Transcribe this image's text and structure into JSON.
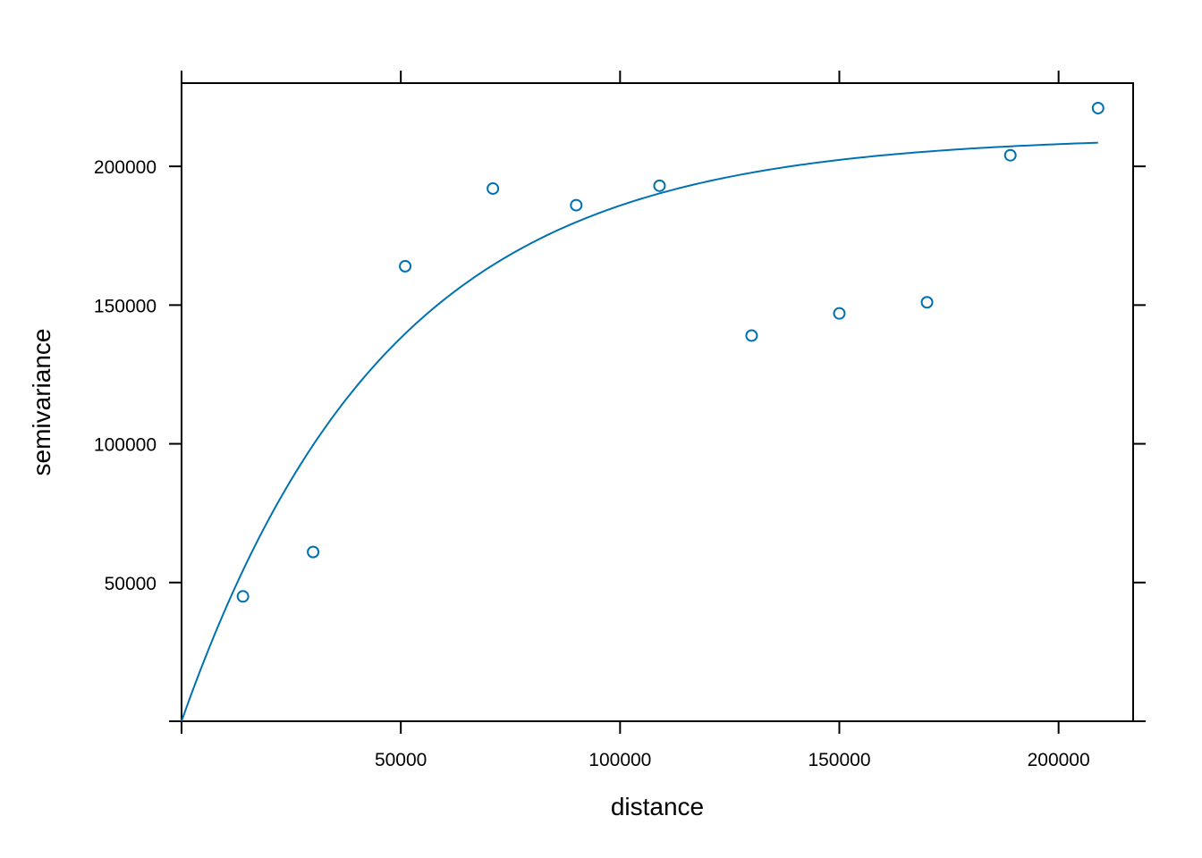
{
  "chart_data": {
    "type": "scatter",
    "xlabel": "distance",
    "ylabel": "semivariance",
    "xlim": [
      0,
      217000
    ],
    "ylim": [
      0,
      230000
    ],
    "x_ticks": [
      50000,
      100000,
      150000,
      200000
    ],
    "x_tick_labels": [
      "50000",
      "100000",
      "150000",
      "200000"
    ],
    "y_ticks": [
      50000,
      100000,
      150000,
      200000
    ],
    "y_tick_labels": [
      "50000",
      "100000",
      "150000",
      "200000"
    ],
    "grid": false,
    "color": "#0072B2",
    "points": {
      "x": [
        14000,
        30000,
        51000,
        71000,
        90000,
        109000,
        130000,
        150000,
        170000,
        189000,
        209000
      ],
      "y": [
        45000,
        61000,
        164000,
        192000,
        186000,
        193000,
        139000,
        147000,
        151000,
        204000,
        221000
      ]
    },
    "fitted_model": {
      "type": "exponential",
      "psill": 211000,
      "range": 47000,
      "nugget": 0,
      "x_max": 209000
    }
  }
}
